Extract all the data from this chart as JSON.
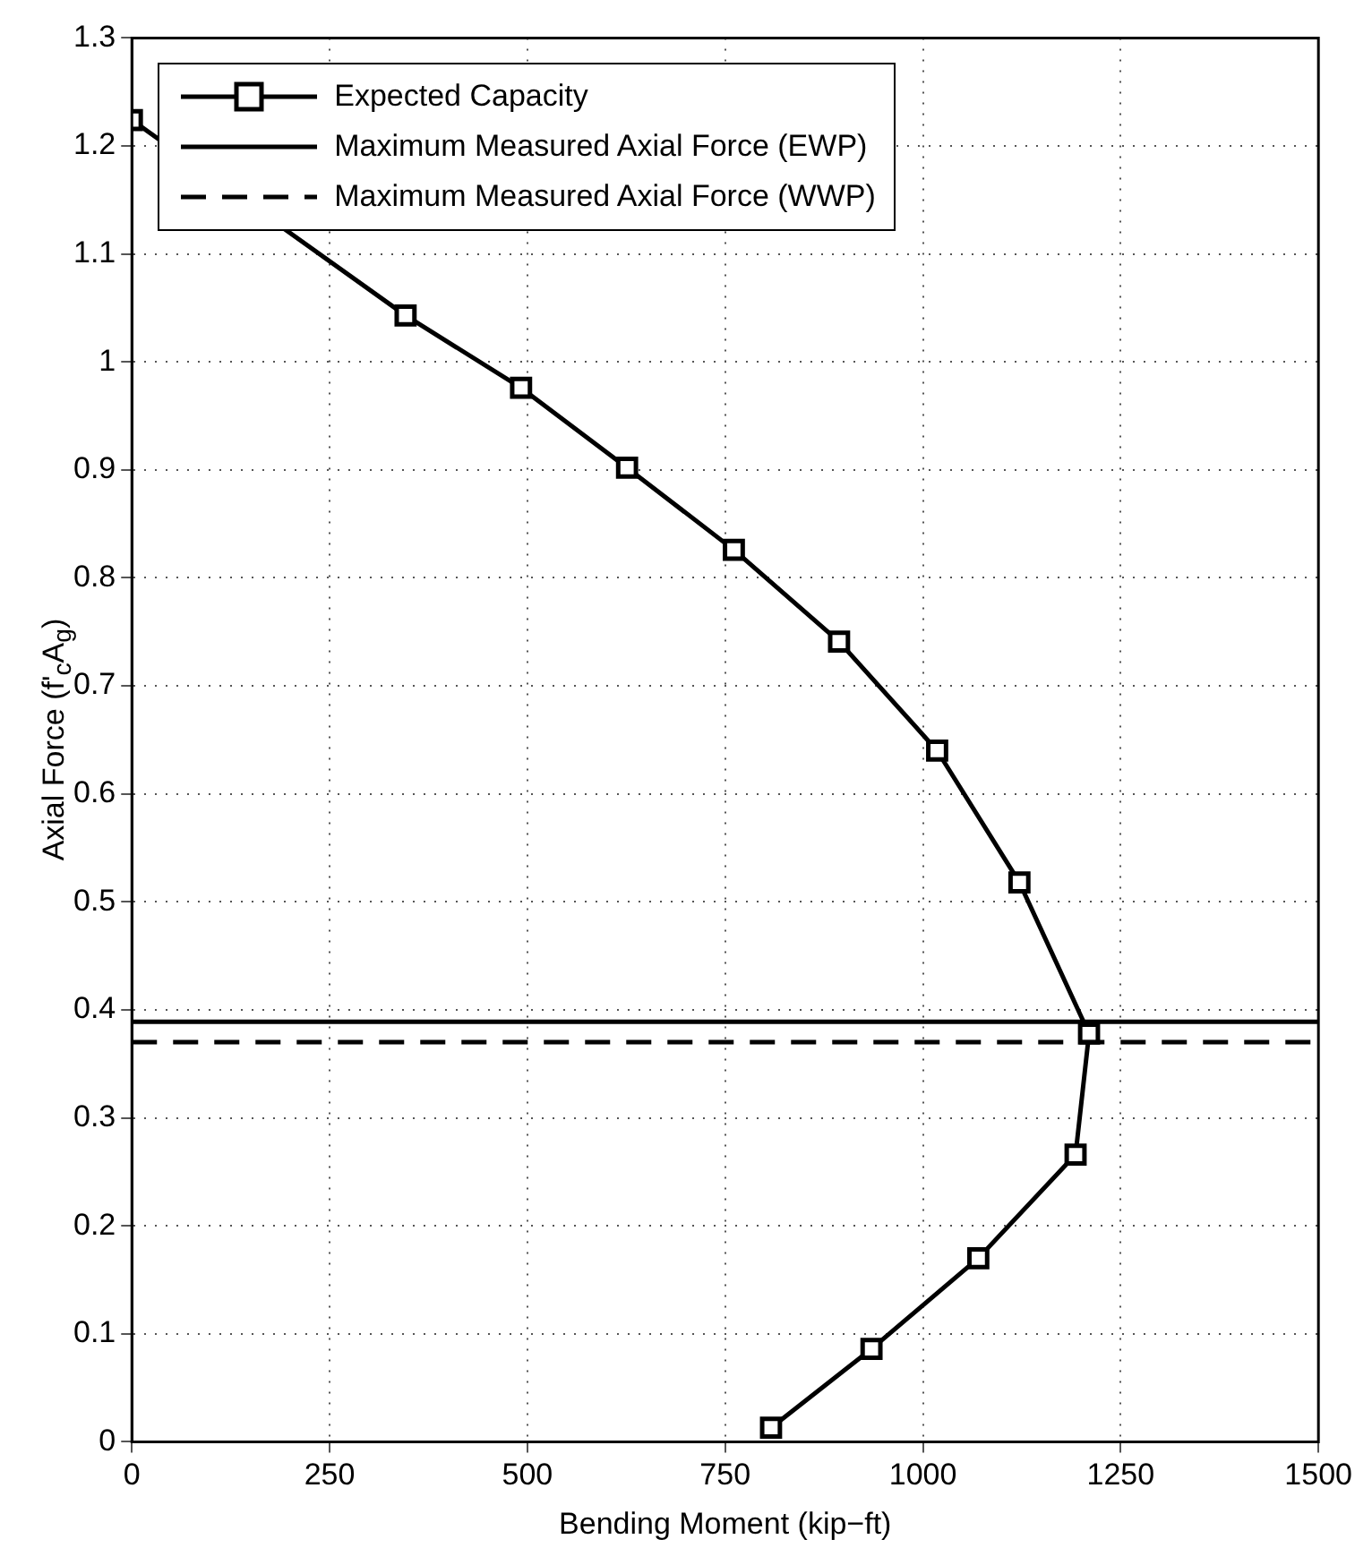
{
  "chart_data": {
    "type": "line",
    "xlabel": "Bending Moment (kip−ft)",
    "ylabel": "Axial Force (f'$_{c}$A$_{g}$)",
    "x": [
      0,
      346,
      492,
      626,
      761,
      894,
      1018,
      1122,
      1210,
      1193,
      1070,
      935,
      808
    ],
    "series": [
      {
        "name": "Expected Capacity",
        "color": "#000000",
        "values": [
          1.224,
          1.043,
          0.976,
          0.902,
          0.826,
          0.741,
          0.64,
          0.518,
          0.378,
          0.266,
          0.17,
          0.086,
          0.013
        ]
      }
    ],
    "marker": "square",
    "line_style": "solid",
    "ref_lines": [
      {
        "axis": "y",
        "value": 0.389,
        "label": "Maximum Measured Axial Force (EWP)",
        "color": "#000000",
        "line_style": "solid"
      },
      {
        "axis": "y",
        "value": 0.37,
        "label": "Maximum Measured Axial Force (WWP)",
        "color": "#000000",
        "line_style": "dashed"
      }
    ],
    "xlim": [
      0,
      1500
    ],
    "xticks": [
      0,
      250,
      500,
      750,
      1000,
      1250,
      1500
    ],
    "ylim": [
      0,
      1.3
    ],
    "yticks": [
      0,
      0.1,
      0.2,
      0.3,
      0.4,
      0.5,
      0.6,
      0.7,
      0.8,
      0.9,
      1,
      1.1,
      1.2,
      1.3
    ],
    "grid": true,
    "legend": "top left"
  }
}
